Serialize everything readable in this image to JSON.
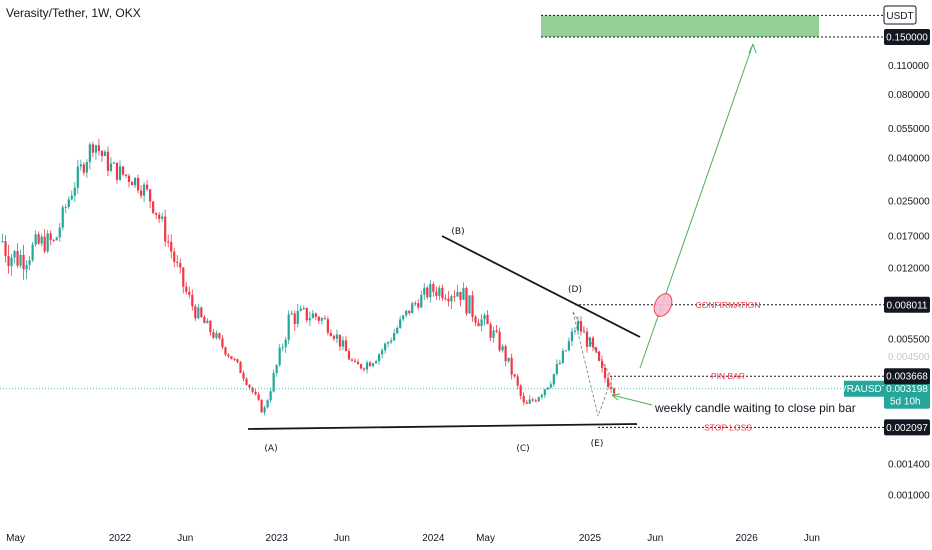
{
  "title": "Verasity/Tether, 1W, OKX",
  "currency_label": "USDT",
  "colors": {
    "up": "#26a69a",
    "down": "#f23645",
    "target_zone": "#81c784",
    "price_line": "#26a69a",
    "trend": "#131722"
  },
  "chart_data": {
    "type": "candlestick",
    "scale": "log",
    "x_ticks": [
      "May",
      "2022",
      "Jun",
      "2023",
      "Jun",
      "2024",
      "May",
      "2025",
      "Jun",
      "2026",
      "Jun"
    ],
    "y_ticks": [
      "0.150000",
      "0.110000",
      "0.080000",
      "0.055000",
      "0.040000",
      "0.025000",
      "0.017000",
      "0.012000",
      "0.008011",
      "0.005500",
      "0.003668",
      "0.003198",
      "0.002097",
      "0.001400",
      "0.001000"
    ],
    "ohlc_envelope": [
      {
        "date": "2021-04",
        "high": 0.036,
        "low": 0.011
      },
      {
        "date": "2021-08",
        "high": 0.018,
        "low": 0.01
      },
      {
        "date": "2021-11",
        "high": 0.078,
        "low": 0.04
      },
      {
        "date": "2022-02",
        "high": 0.04,
        "low": 0.022
      },
      {
        "date": "2022-05",
        "high": 0.02,
        "low": 0.01
      },
      {
        "date": "2022-09",
        "high": 0.0055,
        "low": 0.004
      },
      {
        "date": "2022-12",
        "high": 0.0028,
        "low": 0.0022
      },
      {
        "date": "2023-02",
        "high": 0.012,
        "low": 0.006
      },
      {
        "date": "2023-07",
        "high": 0.005,
        "low": 0.0035
      },
      {
        "date": "2023-12",
        "high": 0.0095,
        "low": 0.006
      },
      {
        "date": "2024-03",
        "high": 0.0175,
        "low": 0.008
      },
      {
        "date": "2024-08",
        "high": 0.003,
        "low": 0.0021
      },
      {
        "date": "2024-12",
        "high": 0.0081,
        "low": 0.005
      },
      {
        "date": "2025-02",
        "high": 0.0042,
        "low": 0.0024
      }
    ],
    "annotations": {
      "wave_labels": [
        "(A)",
        "(B)",
        "(C)",
        "(D)",
        "(E)"
      ],
      "levels": [
        {
          "label": "CONFIRMATION",
          "value": 0.008011
        },
        {
          "label": "PIN BAR",
          "value": 0.003668
        },
        {
          "label": "STOP LOSS",
          "value": 0.002097
        }
      ],
      "target_zone": {
        "low": 0.15,
        "high": 0.19
      },
      "note": "weekly candle waiting to close pin bar"
    },
    "current_price": {
      "symbol": "VRAUSDT",
      "price": "0.003198",
      "countdown": "5d 10h"
    }
  }
}
